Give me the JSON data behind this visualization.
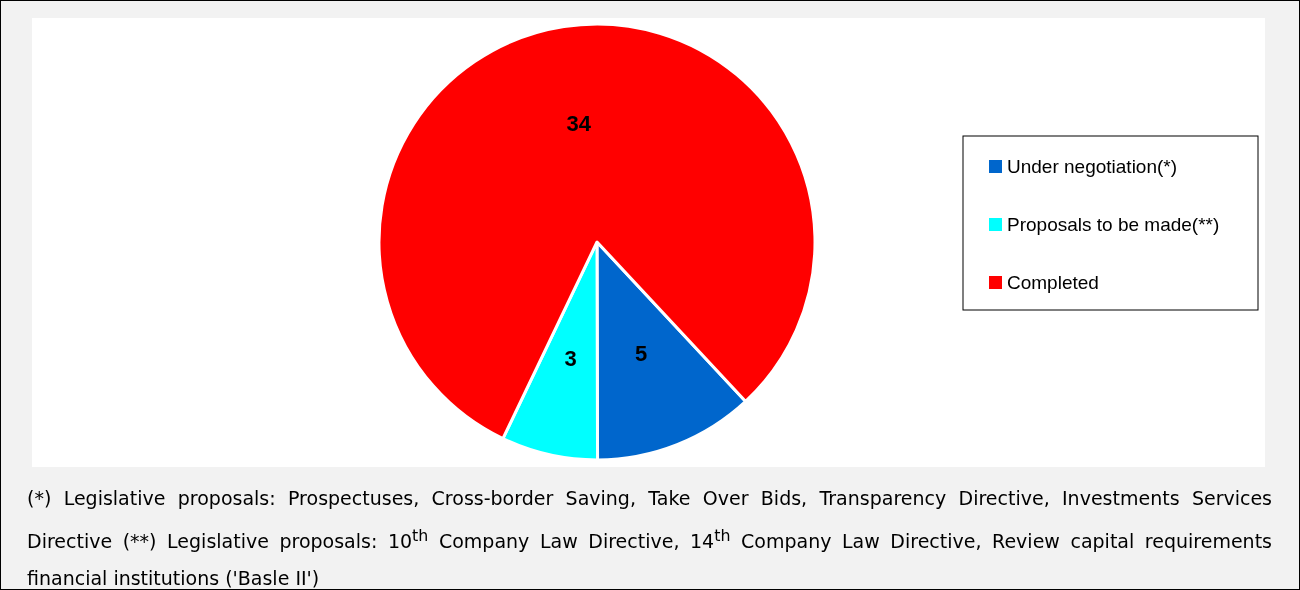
{
  "chart_data": {
    "type": "pie",
    "categories": [
      "Under negotiation(*)",
      "Proposals to be made(**)",
      "Completed"
    ],
    "values": [
      5,
      3,
      34
    ],
    "colors": [
      "#0066cc",
      "#00ffff",
      "#ff0000"
    ],
    "data_labels": true,
    "legend": "right",
    "annotations": [
      "(*) Legislative proposals: Prospectuses, Cross-border Saving, Take Over Bids, Transparency Directive, Investments Services Directive (**) Legislative proposals: 10$^{th}$ Company Law Directive, 14$^{th}$ Company Law Directive, Review capital requirements financial institutions ('Basle II')"
    ]
  }
}
